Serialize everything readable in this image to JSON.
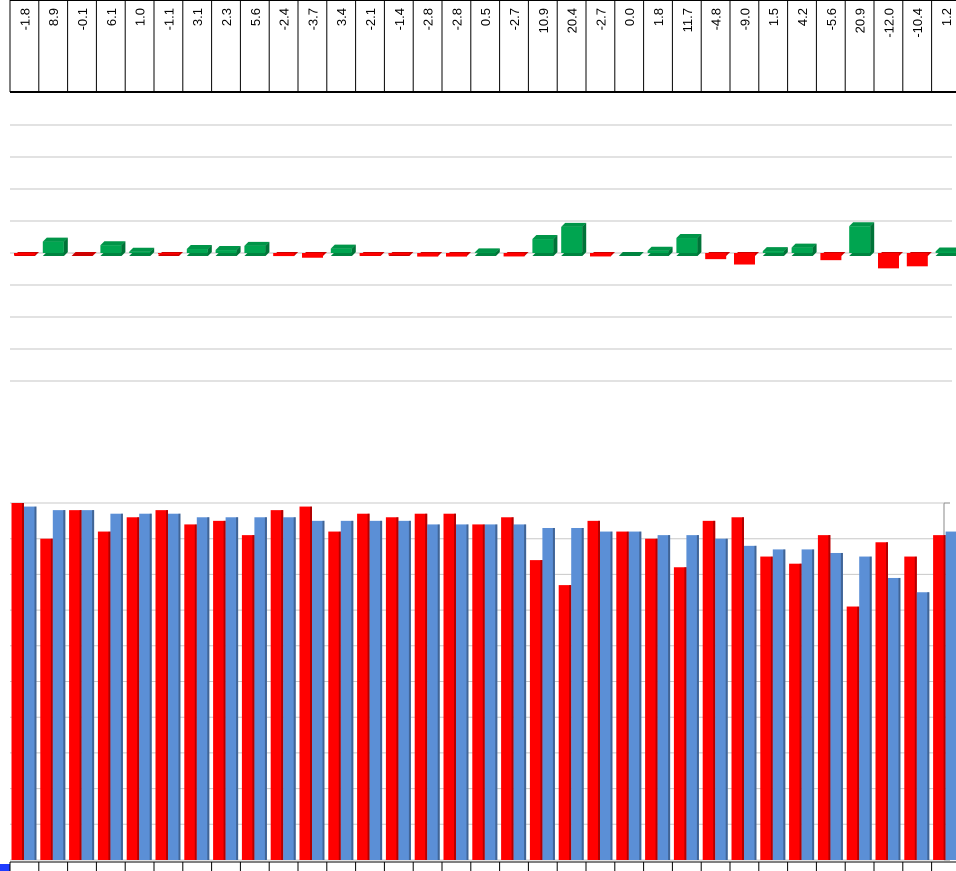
{
  "table": {
    "row": [
      "-1.8",
      "8.9",
      "-0.1",
      "6.1",
      "1.0",
      "-1.1",
      "3.1",
      "2.3",
      "5.6",
      "-2.4",
      "-3.7",
      "3.4",
      "-2.1",
      "-1.4",
      "-2.8",
      "-2.8",
      "0.5",
      "-2.7",
      "10.9",
      "20.4",
      "-2.7",
      "0.0",
      "1.8",
      "11.7",
      "-4.8",
      "-9.0",
      "1.5",
      "4.2",
      "-5.6",
      "20.9",
      "-12.0",
      "-10.4",
      "1.2"
    ]
  },
  "chart_data": [
    {
      "type": "bar",
      "values": [
        -1.8,
        8.9,
        -0.1,
        6.1,
        1.0,
        -1.1,
        3.1,
        2.3,
        5.6,
        -2.4,
        -3.7,
        3.4,
        -2.1,
        -1.4,
        -2.8,
        -2.8,
        0.5,
        -2.7,
        10.9,
        20.4,
        -2.7,
        0.0,
        1.8,
        11.7,
        -4.8,
        -9.0,
        1.5,
        4.2,
        -5.6,
        20.9,
        -12.0,
        -10.4,
        1.2
      ],
      "positive_color": "#00a550",
      "negative_color": "#ff0000",
      "ylim": [
        -100,
        100
      ],
      "yticks": [
        -100,
        -75,
        -50,
        -25,
        0,
        25,
        50,
        75,
        100
      ],
      "grid": true
    },
    {
      "type": "grouped_bar",
      "series": [
        {
          "color": "#ff0000",
          "values": [
            100,
            90,
            98,
            92,
            96,
            98,
            94,
            95,
            91,
            98,
            99,
            92,
            97,
            96,
            97,
            97,
            94,
            96,
            84,
            77,
            95,
            92,
            90,
            82,
            95,
            96,
            85,
            83,
            91,
            71,
            89,
            85,
            91
          ]
        },
        {
          "color": "#5b8fd6",
          "values": [
            99,
            98,
            98,
            97,
            97,
            97,
            96,
            96,
            96,
            96,
            95,
            95,
            95,
            95,
            94,
            94,
            94,
            94,
            93,
            93,
            92,
            92,
            91,
            91,
            90,
            88,
            87,
            87,
            86,
            85,
            79,
            75,
            92
          ]
        }
      ],
      "ylim": [
        0,
        100
      ],
      "yticks": [
        0,
        10,
        20,
        30,
        40,
        50,
        60,
        70,
        80,
        90,
        100
      ],
      "grid": true
    }
  ]
}
